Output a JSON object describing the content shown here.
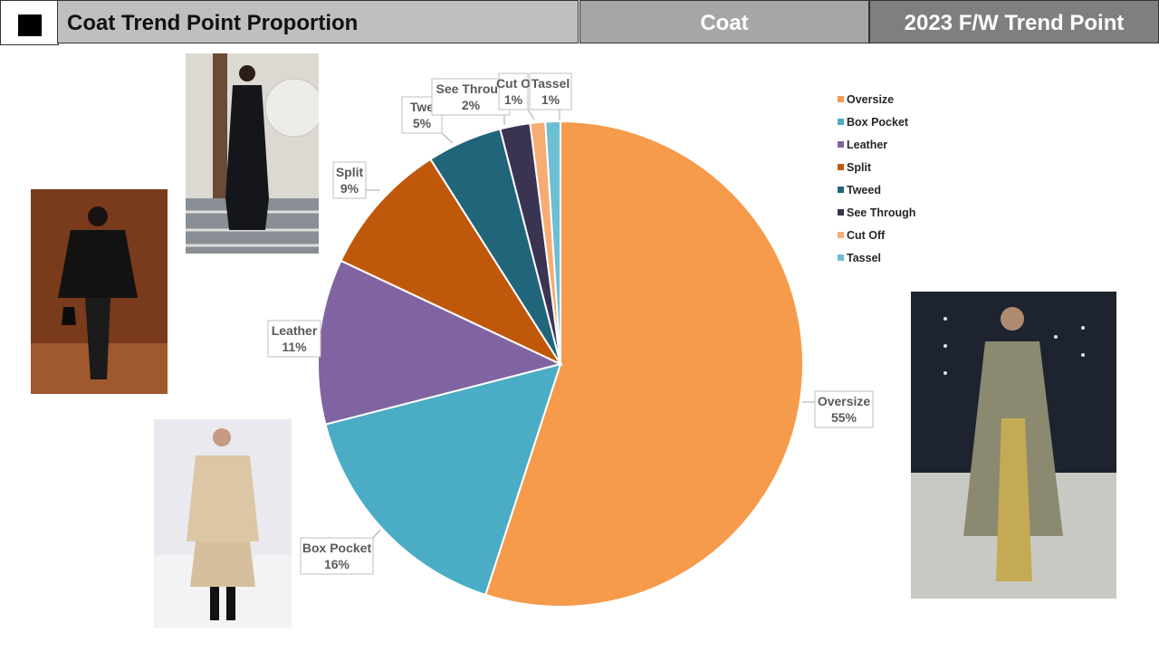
{
  "header": {
    "title": "Coat Trend Point Proportion",
    "category": "Coat",
    "season": "2023 F/W Trend Point"
  },
  "photos": [
    {
      "name": "runway-photo-long-black-coat",
      "bg": "#d9d6d0",
      "accent": "#1a1a1e"
    },
    {
      "name": "runway-photo-leather-cape",
      "bg": "#7a3a1c",
      "accent": "#101010"
    },
    {
      "name": "runway-photo-beige-oversize",
      "bg": "#e8e8ee",
      "accent": "#d8c3a3"
    },
    {
      "name": "runway-photo-olive-long-coat",
      "bg": "#1e2530",
      "accent": "#8c8a72"
    }
  ],
  "chart_data": {
    "type": "pie",
    "title": "",
    "labels": [
      "Oversize",
      "Box Pocket",
      "Leather",
      "Split",
      "Tweed",
      "See Through",
      "Cut Off",
      "Tassel"
    ],
    "values": [
      55,
      16,
      11,
      9,
      5,
      2,
      1,
      1
    ],
    "data_labels": [
      "Oversize",
      "Box Pocket",
      "Leather",
      "Split",
      "Twe",
      "See Throug",
      "Cut O",
      "Tassel"
    ],
    "value_labels": [
      "55%",
      "16%",
      "11%",
      "9%",
      "5%",
      "2%",
      "1%",
      "1%"
    ],
    "colors": [
      "#f59b4b",
      "#4bacc6",
      "#8064a2",
      "#c0580c",
      "#21657a",
      "#3b3352",
      "#f7ac74",
      "#6cbfd2"
    ],
    "legend_position": "right",
    "start": "top, clockwise"
  }
}
